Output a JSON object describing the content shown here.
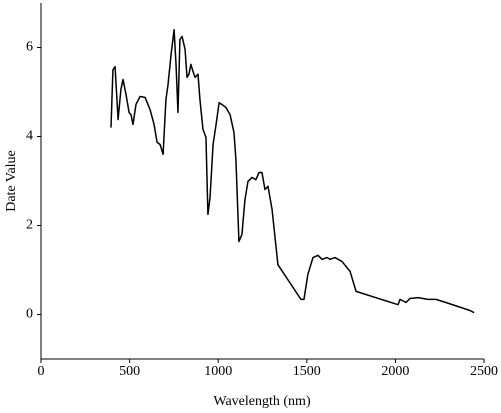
{
  "chart_data": {
    "type": "line",
    "x_label": "Wavelength (nm)",
    "y_label": "Date Value",
    "color": "#000000",
    "xlim": [
      0,
      2500
    ],
    "xticks": [
      0,
      500,
      1000,
      1500,
      2000,
      2500
    ],
    "ylim": [
      -1,
      7
    ],
    "yticks": [
      0,
      2,
      4,
      6
    ],
    "grid": false,
    "x": [
      395,
      406,
      418,
      435,
      451,
      463,
      480,
      497,
      508,
      519,
      536,
      559,
      587,
      615,
      638,
      655,
      672,
      689,
      705,
      717,
      734,
      751,
      762,
      773,
      784,
      796,
      813,
      824,
      835,
      846,
      858,
      869,
      886,
      897,
      914,
      931,
      942,
      954,
      971,
      988,
      1005,
      1021,
      1044,
      1067,
      1089,
      1100,
      1117,
      1134,
      1151,
      1168,
      1191,
      1213,
      1230,
      1247,
      1264,
      1281,
      1304,
      1337,
      1467,
      1484,
      1506,
      1535,
      1563,
      1586,
      1614,
      1631,
      1659,
      1699,
      1744,
      1778,
      2015,
      2026,
      2060,
      2082,
      2128,
      2184,
      2229,
      2285,
      2421,
      2444
    ],
    "values": [
      4.2,
      5.5,
      5.57,
      4.38,
      5.06,
      5.28,
      4.94,
      4.54,
      4.49,
      4.27,
      4.72,
      4.9,
      4.88,
      4.61,
      4.27,
      3.87,
      3.82,
      3.6,
      4.83,
      5.17,
      5.84,
      6.4,
      5.62,
      4.54,
      6.18,
      6.25,
      5.96,
      5.33,
      5.4,
      5.62,
      5.46,
      5.33,
      5.4,
      4.83,
      4.16,
      3.98,
      2.25,
      2.63,
      3.82,
      4.27,
      4.76,
      4.72,
      4.65,
      4.49,
      4.09,
      3.48,
      1.64,
      1.8,
      2.58,
      2.99,
      3.08,
      3.03,
      3.19,
      3.19,
      2.81,
      2.88,
      2.36,
      1.12,
      0.34,
      0.34,
      0.9,
      1.28,
      1.33,
      1.24,
      1.28,
      1.24,
      1.28,
      1.19,
      0.97,
      0.52,
      0.22,
      0.34,
      0.27,
      0.36,
      0.38,
      0.34,
      0.34,
      0.27,
      0.09,
      0.04
    ]
  }
}
